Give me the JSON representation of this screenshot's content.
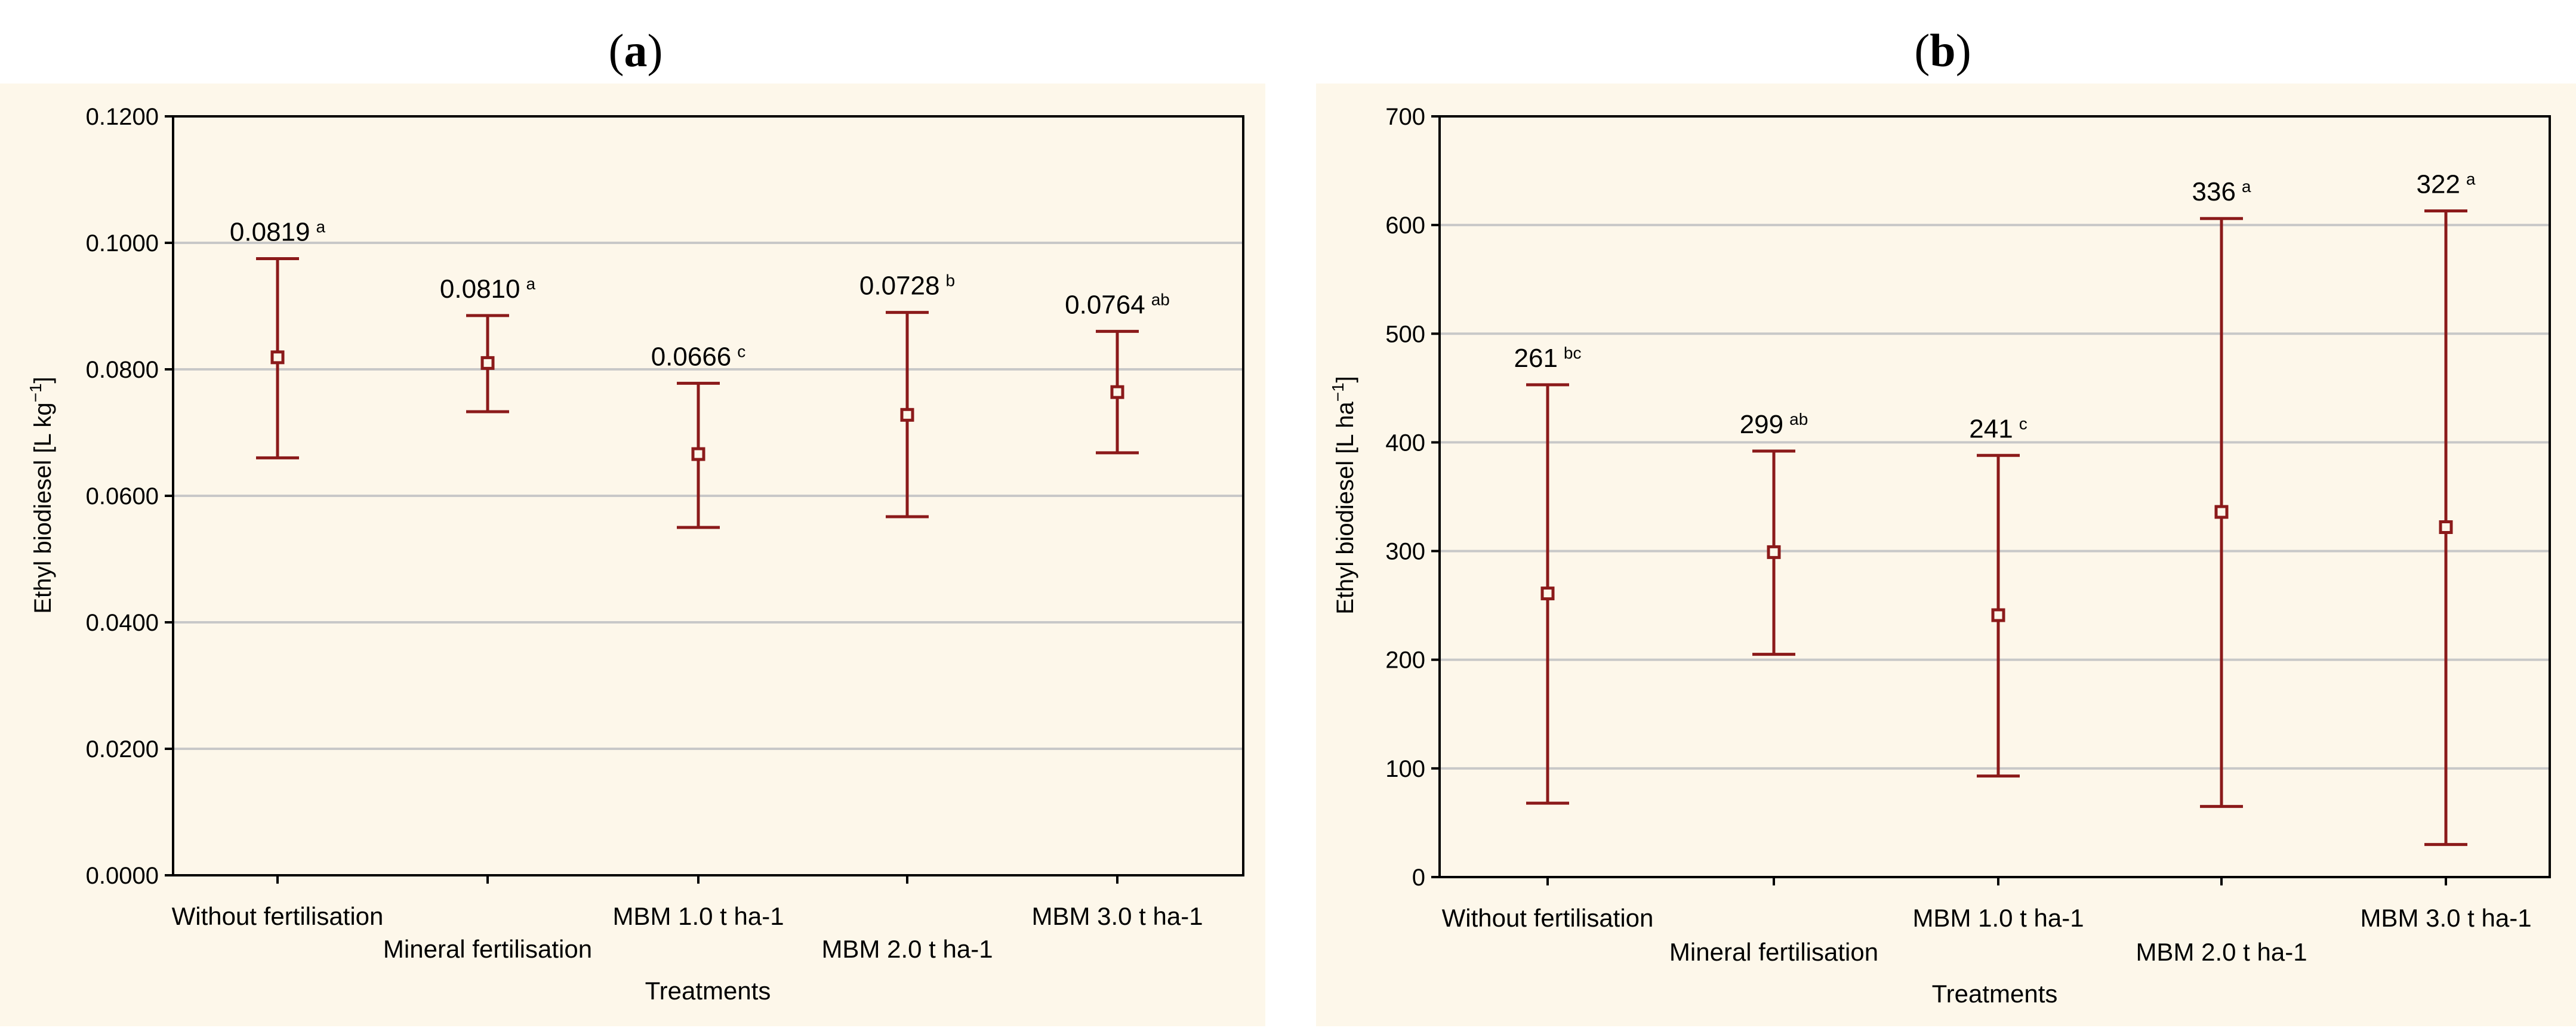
{
  "chart_data": [
    {
      "type": "errorbar",
      "panel_label": "a",
      "title": "",
      "xlabel": "Treatments",
      "ylabel": "Ethyl biodiesel [L kg",
      "ylabel_sup": "−1",
      "ylabel_end": "]",
      "ylim": [
        0,
        0.12
      ],
      "yticks": [
        0,
        0.02,
        0.04,
        0.06,
        0.08,
        0.1,
        0.12
      ],
      "ytick_labels": [
        "0.0000",
        "0.0200",
        "0.0400",
        "0.0600",
        "0.0800",
        "0.1000",
        "0.1200"
      ],
      "grid": true,
      "categories": [
        "Without fertilisation",
        "Mineral fertilisation",
        "MBM 1.0 t ha-1",
        "MBM 2.0 t ha-1",
        "MBM 3.0 t ha-1"
      ],
      "values": [
        0.0819,
        0.081,
        0.0666,
        0.0728,
        0.0764
      ],
      "lower": [
        0.066,
        0.0733,
        0.055,
        0.0567,
        0.0668
      ],
      "upper": [
        0.0975,
        0.0885,
        0.0778,
        0.089,
        0.086
      ],
      "value_labels": [
        "0.0819",
        "0.0810",
        "0.0666",
        "0.0728",
        "0.0764"
      ],
      "letters": [
        "a",
        "a",
        "c",
        "b",
        "ab"
      ]
    },
    {
      "type": "errorbar",
      "panel_label": "b",
      "title": "",
      "xlabel": "Treatments",
      "ylabel": "Ethyl biodiesel [L ha",
      "ylabel_sup": "−1",
      "ylabel_end": "]",
      "ylim": [
        0,
        700
      ],
      "yticks": [
        0,
        100,
        200,
        300,
        400,
        500,
        600,
        700
      ],
      "ytick_labels": [
        "0",
        "100",
        "200",
        "300",
        "400",
        "500",
        "600",
        "700"
      ],
      "grid": true,
      "categories": [
        "Without fertilisation",
        "Mineral fertilisation",
        "MBM 1.0 t ha-1",
        "MBM 2.0 t ha-1",
        "MBM 3.0 t ha-1"
      ],
      "values": [
        261,
        299,
        241,
        336,
        322
      ],
      "lower": [
        68,
        205,
        93,
        65,
        30
      ],
      "upper": [
        453,
        392,
        388,
        606,
        613
      ],
      "value_labels": [
        "261",
        "299",
        "241",
        "336",
        "322"
      ],
      "letters": [
        "bc",
        "ab",
        "c",
        "a",
        "a"
      ]
    }
  ],
  "colors": {
    "marks": "#8b1a1a",
    "grid": "#c8c8c8",
    "axis": "#000000",
    "panel_bg": "#fdf7ea"
  }
}
